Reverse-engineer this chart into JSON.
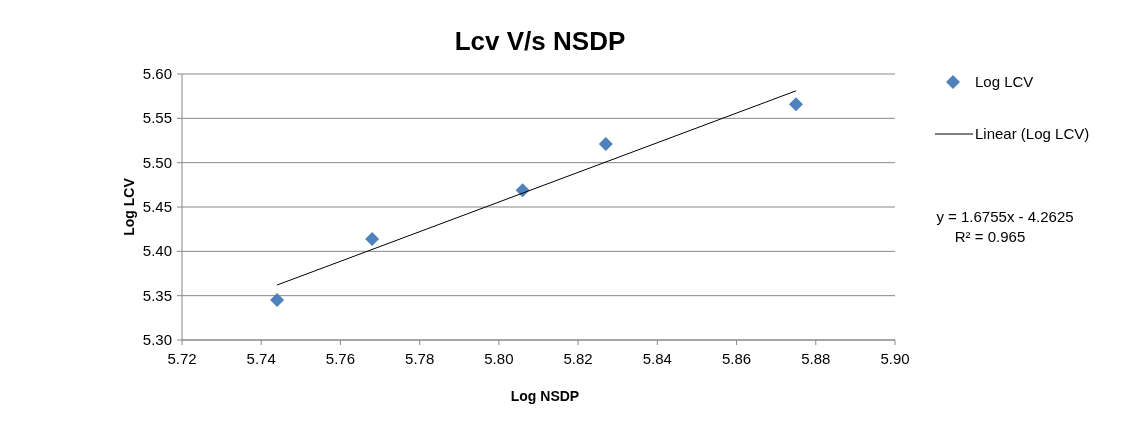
{
  "chart_data": {
    "type": "scatter",
    "title": "Lcv V/s NSDP",
    "xlabel": "Log NSDP",
    "ylabel": "Log LCV",
    "xlim": [
      5.72,
      5.9
    ],
    "xticks": [
      {
        "value": 5.72,
        "label": "5.72"
      },
      {
        "value": 5.74,
        "label": "5.74"
      },
      {
        "value": 5.76,
        "label": "5.76"
      },
      {
        "value": 5.78,
        "label": "5.78"
      },
      {
        "value": 5.8,
        "label": "5.80"
      },
      {
        "value": 5.82,
        "label": "5.82"
      },
      {
        "value": 5.84,
        "label": "5.84"
      },
      {
        "value": 5.86,
        "label": "5.86"
      },
      {
        "value": 5.88,
        "label": "5.88"
      },
      {
        "value": 5.9,
        "label": "5.90"
      }
    ],
    "ylim": [
      5.3,
      5.6
    ],
    "yticks": [
      {
        "value": 5.3,
        "label": "5.30"
      },
      {
        "value": 5.35,
        "label": "5.35"
      },
      {
        "value": 5.4,
        "label": "5.40"
      },
      {
        "value": 5.45,
        "label": "5.45"
      },
      {
        "value": 5.5,
        "label": "5.50"
      },
      {
        "value": 5.55,
        "label": "5.55"
      },
      {
        "value": 5.6,
        "label": "5.60"
      }
    ],
    "grid": "y",
    "legend": "right",
    "series": [
      {
        "name": "Log LCV",
        "marker": "diamond",
        "color": "#4f81bd",
        "x": [
          5.744,
          5.768,
          5.806,
          5.827,
          5.875
        ],
        "values": [
          5.345,
          5.414,
          5.469,
          5.521,
          5.566
        ]
      },
      {
        "name": "Linear (Log LCV)",
        "type": "line",
        "color": "#000000",
        "x": [
          5.744,
          5.875
        ],
        "values": [
          5.362,
          5.581
        ]
      }
    ],
    "annotations": [
      "y = 1.6755x - 4.2625",
      "R² = 0.965"
    ]
  }
}
